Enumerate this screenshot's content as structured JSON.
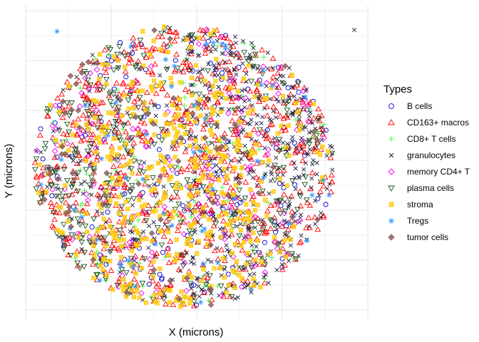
{
  "chart_data": {
    "type": "scatter",
    "title": "",
    "xlabel": "X (microns)",
    "ylabel": "Y (microns)",
    "x_tick_labels": [],
    "y_tick_labels": [],
    "grid": true,
    "legend": {
      "title": "Types",
      "placement": "right",
      "entries": [
        {
          "name": "B cells",
          "shape": "circle-open",
          "color": "#0000cd"
        },
        {
          "name": "CD163+ macros",
          "shape": "triangle-open",
          "color": "#ff0000"
        },
        {
          "name": "CD8+ T cells",
          "shape": "plus",
          "color": "#33ff33"
        },
        {
          "name": "granulocytes",
          "shape": "cross",
          "color": "#1a1a3c"
        },
        {
          "name": "memory CD4+ T",
          "shape": "diamond-open",
          "color": "#ee00ee"
        },
        {
          "name": "plasma cells",
          "shape": "triangle-down-open",
          "color": "#1f4f1f"
        },
        {
          "name": "stroma",
          "shape": "square-cross",
          "color": "#ffcc11"
        },
        {
          "name": "Tregs",
          "shape": "asterisk",
          "color": "#3399ff"
        },
        {
          "name": "tumor cells",
          "shape": "diamond-plus",
          "color": "#8b5a5a"
        }
      ]
    },
    "point_counts": {
      "B cells": 160,
      "CD163+ macros": 720,
      "CD8+ T cells": 110,
      "granulocytes": 560,
      "memory CD4+ T": 150,
      "plasma cells": 330,
      "stroma": 450,
      "Tregs": 55,
      "tumor cells": 70
    },
    "note": ""
  },
  "colors": {
    "grid": "#e5e5e5",
    "background": "#ffffff"
  }
}
